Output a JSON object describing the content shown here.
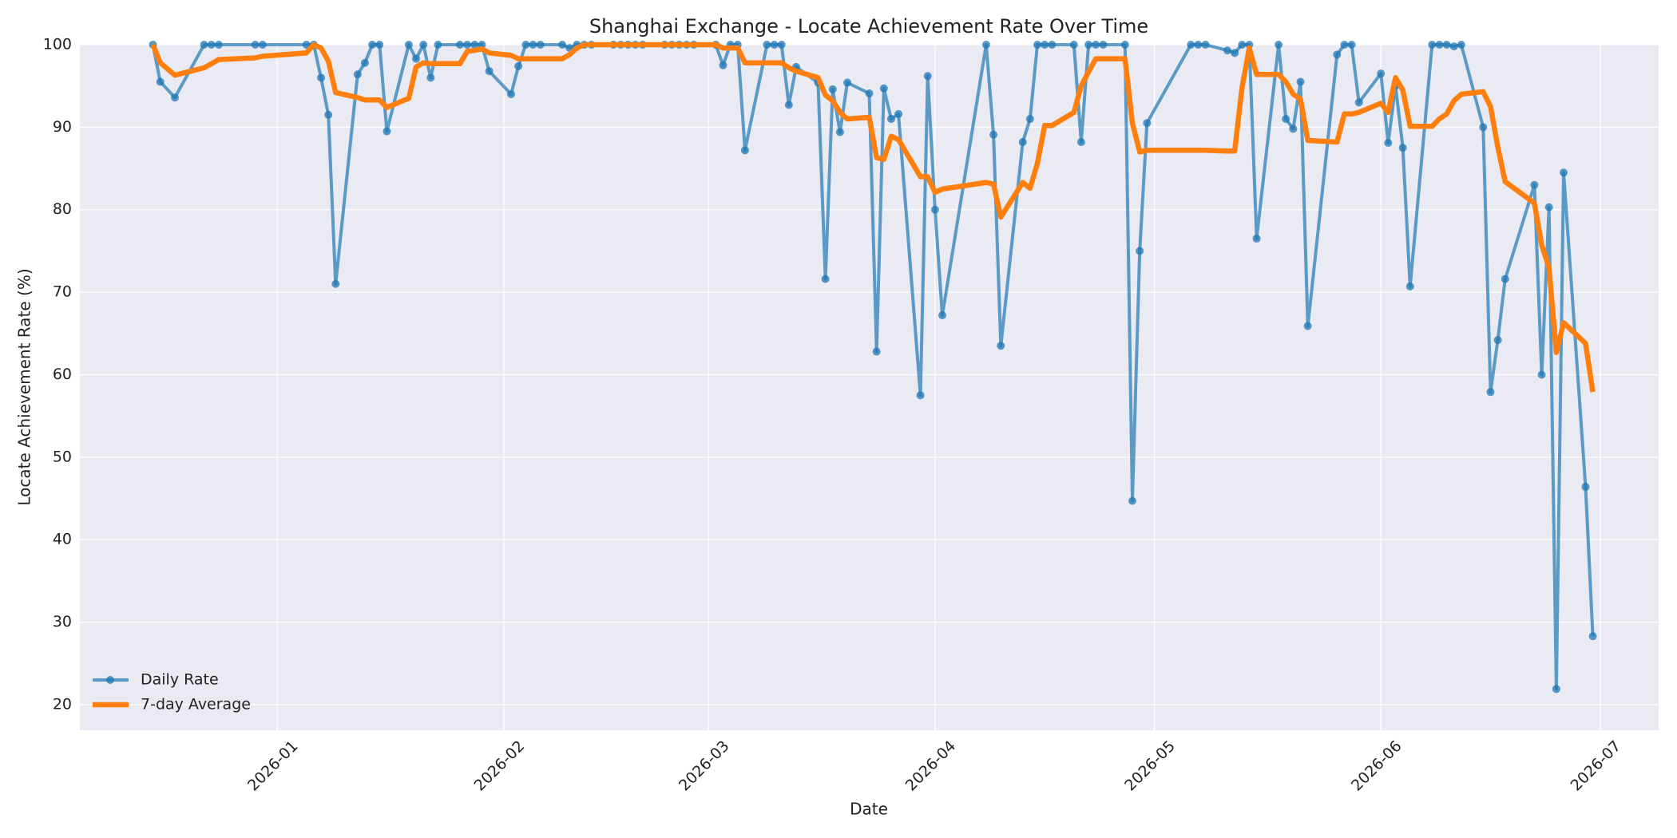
{
  "chart_data": {
    "type": "line",
    "title": "Shanghai Exchange - Locate Achievement Rate Over Time",
    "xlabel": "Date",
    "ylabel": "Locate Achievement Rate (%)",
    "x": [
      "2025-12-15",
      "2025-12-16",
      "2025-12-18",
      "2025-12-22",
      "2025-12-23",
      "2025-12-24",
      "2025-12-29",
      "2025-12-30",
      "2026-01-05",
      "2026-01-06",
      "2026-01-07",
      "2026-01-08",
      "2026-01-09",
      "2026-01-12",
      "2026-01-13",
      "2026-01-14",
      "2026-01-15",
      "2026-01-16",
      "2026-01-19",
      "2026-01-20",
      "2026-01-21",
      "2026-01-22",
      "2026-01-23",
      "2026-01-26",
      "2026-01-27",
      "2026-01-28",
      "2026-01-29",
      "2026-01-30",
      "2026-02-02",
      "2026-02-03",
      "2026-02-04",
      "2026-02-05",
      "2026-02-06",
      "2026-02-09",
      "2026-02-10",
      "2026-02-11",
      "2026-02-12",
      "2026-02-13",
      "2026-02-16",
      "2026-02-17",
      "2026-02-18",
      "2026-02-19",
      "2026-02-20",
      "2026-02-23",
      "2026-02-24",
      "2026-02-25",
      "2026-02-26",
      "2026-02-27",
      "2026-03-02",
      "2026-03-03",
      "2026-03-04",
      "2026-03-05",
      "2026-03-06",
      "2026-03-09",
      "2026-03-10",
      "2026-03-11",
      "2026-03-12",
      "2026-03-13",
      "2026-03-16",
      "2026-03-17",
      "2026-03-18",
      "2026-03-19",
      "2026-03-20",
      "2026-03-23",
      "2026-03-24",
      "2026-03-25",
      "2026-03-26",
      "2026-03-27",
      "2026-03-30",
      "2026-03-31",
      "2026-04-01",
      "2026-04-02",
      "2026-04-08",
      "2026-04-09",
      "2026-04-10",
      "2026-04-13",
      "2026-04-14",
      "2026-04-15",
      "2026-04-16",
      "2026-04-17",
      "2026-04-20",
      "2026-04-21",
      "2026-04-22",
      "2026-04-23",
      "2026-04-24",
      "2026-04-27",
      "2026-04-28",
      "2026-04-29",
      "2026-04-30",
      "2026-05-06",
      "2026-05-07",
      "2026-05-08",
      "2026-05-11",
      "2026-05-12",
      "2026-05-13",
      "2026-05-14",
      "2026-05-15",
      "2026-05-18",
      "2026-05-19",
      "2026-05-20",
      "2026-05-21",
      "2026-05-22",
      "2026-05-26",
      "2026-05-27",
      "2026-05-28",
      "2026-05-29",
      "2026-06-01",
      "2026-06-02",
      "2026-06-03",
      "2026-06-04",
      "2026-06-05",
      "2026-06-08",
      "2026-06-09",
      "2026-06-10",
      "2026-06-11",
      "2026-06-12",
      "2026-06-15",
      "2026-06-16",
      "2026-06-17",
      "2026-06-18",
      "2026-06-22",
      "2026-06-23",
      "2026-06-24",
      "2026-06-25",
      "2026-06-26",
      "2026-06-29",
      "2026-06-30"
    ],
    "series": [
      {
        "name": "Daily Rate",
        "color": "#1f77b4",
        "marker": true,
        "values": [
          100,
          95.5,
          93.6,
          100,
          100,
          100,
          100,
          100,
          100,
          100,
          96,
          91.5,
          71,
          96.4,
          97.8,
          100,
          100,
          89.5,
          100,
          98.3,
          100,
          96,
          100,
          100,
          100,
          100,
          100,
          96.8,
          94,
          97.4,
          100,
          100,
          100,
          100,
          99.6,
          100,
          100,
          100,
          100,
          100,
          100,
          100,
          100,
          100,
          100,
          100,
          100,
          100,
          100,
          97.5,
          100,
          100,
          87.2,
          100,
          100,
          100,
          92.7,
          97.3,
          95.4,
          71.6,
          94.6,
          89.4,
          95.4,
          94.1,
          62.8,
          94.7,
          91,
          91.6,
          57.5,
          96.2,
          80,
          67.2,
          100,
          89.1,
          63.5,
          88.2,
          91,
          100,
          100,
          100,
          100,
          88.2,
          100,
          100,
          100,
          100,
          44.7,
          75,
          90.5,
          100,
          100,
          100,
          99.3,
          99,
          100,
          100,
          76.5,
          100,
          91,
          89.8,
          95.5,
          65.9,
          98.8,
          100,
          100,
          93,
          96.5,
          88.1,
          95,
          87.5,
          70.7,
          100,
          100,
          100,
          99.8,
          100,
          90,
          57.9,
          64.2,
          71.6,
          83,
          60,
          80.3,
          21.9,
          84.5,
          46.4,
          28.3
        ]
      },
      {
        "name": "7-day Average",
        "color": "#ff7f0e",
        "marker": false,
        "values": [
          100,
          97.8,
          96.3,
          97.2,
          97.7,
          98.2,
          98.4,
          98.6,
          99,
          100,
          99.6,
          98,
          94.2,
          93.6,
          93.3,
          93.3,
          93.3,
          92.4,
          93.5,
          97.3,
          97.8,
          97.7,
          97.7,
          97.7,
          99.2,
          99.3,
          99.5,
          99,
          98.7,
          98.3,
          98.3,
          98.3,
          98.3,
          98.3,
          98.8,
          99.6,
          100,
          100,
          100,
          100,
          100,
          100,
          100,
          100,
          100,
          100,
          100,
          100,
          100,
          99.6,
          99.6,
          99.6,
          97.8,
          97.8,
          97.8,
          97.8,
          97.2,
          96.8,
          96,
          93.9,
          93.2,
          91.8,
          91,
          91.2,
          86.3,
          86.1,
          88.9,
          88.5,
          84,
          84,
          82.1,
          82.5,
          83.3,
          83.1,
          79.1,
          83.3,
          82.6,
          85.6,
          90.2,
          90.2,
          91.8,
          95,
          96.7,
          98.3,
          98.3,
          98.3,
          90.5,
          87,
          87.2,
          87.2,
          87.2,
          87.2,
          87.1,
          87.1,
          94.8,
          99.6,
          96.4,
          96.4,
          95.5,
          94,
          93.4,
          88.4,
          88.2,
          91.6,
          91.6,
          91.8,
          92.9,
          91.8,
          96,
          94.5,
          90.1,
          90.1,
          91,
          91.6,
          93.2,
          94,
          94.3,
          92.5,
          87.6,
          83.4,
          80.8,
          75.7,
          73,
          62.7,
          66.3,
          63.8,
          57.9
        ]
      }
    ],
    "xlim": [
      "2025-12-05",
      "2026-07-09"
    ],
    "xticks": [
      {
        "value": "2026-01-01",
        "label": "2026-01"
      },
      {
        "value": "2026-02-01",
        "label": "2026-02"
      },
      {
        "value": "2026-03-01",
        "label": "2026-03"
      },
      {
        "value": "2026-04-01",
        "label": "2026-04"
      },
      {
        "value": "2026-05-01",
        "label": "2026-05"
      },
      {
        "value": "2026-06-01",
        "label": "2026-06"
      },
      {
        "value": "2026-07-01",
        "label": "2026-07"
      }
    ],
    "ylim": [
      16.9,
      100
    ],
    "yticks": [
      20,
      30,
      40,
      50,
      60,
      70,
      80,
      90,
      100
    ],
    "grid": true,
    "legend": "lower left"
  }
}
